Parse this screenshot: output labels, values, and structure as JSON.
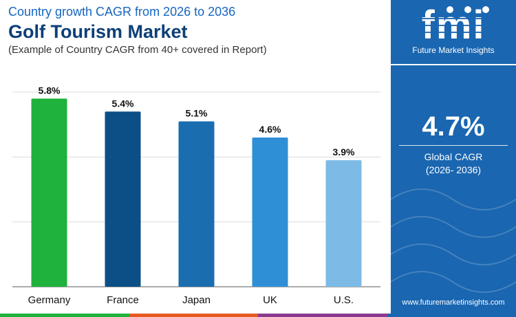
{
  "header": {
    "subtitle_top": "Country growth CAGR from 2026 to 2036",
    "title": "Golf Tourism Market",
    "note": "(Example of Country CAGR from 40+ covered in Report)"
  },
  "chart_data": {
    "type": "bar",
    "categories": [
      "Germany",
      "France",
      "Japan",
      "UK",
      "U.S."
    ],
    "values": [
      5.8,
      5.4,
      5.1,
      4.6,
      3.9
    ],
    "data_labels": [
      "5.8%",
      "5.4%",
      "5.1%",
      "4.6%",
      "3.9%"
    ],
    "bar_colors": [
      "#1fb23c",
      "#0b4f86",
      "#1a6eb0",
      "#2f8fd6",
      "#7dbbe6"
    ],
    "ylim": [
      0,
      6
    ],
    "gridlines": [
      0,
      2,
      4,
      6
    ],
    "grid": true,
    "legend": "none",
    "xlabel": "",
    "ylabel": ""
  },
  "panel": {
    "logo_text": "fmi",
    "logo_caption": "Future Market Insights",
    "stat_value": "4.7%",
    "stat_label_line1": "Global CAGR",
    "stat_label_line2": "(2026- 2036)",
    "footer_url": "www.futuremarketinsights.com",
    "background_color": "#1a66b0"
  },
  "bottom_strip_colors": [
    "#1fb23c",
    "#e85b1f",
    "#8b3b8f",
    "#1a66b0"
  ]
}
